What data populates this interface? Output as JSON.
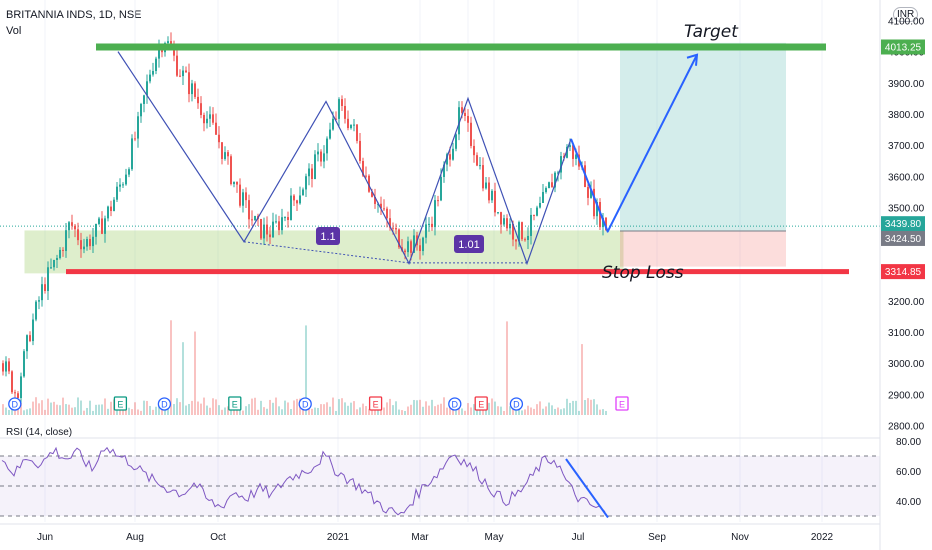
{
  "header": {
    "ticker": "BRITANNIA INDS, 1D, NSE",
    "volume_label": "Vol",
    "currency": "INR",
    "rsi_title": "RSI (14, close)"
  },
  "annotations": {
    "target": "Target",
    "stop_loss": "Stop Loss",
    "ratio_1": "1.1",
    "ratio_2": "1.01"
  },
  "colors": {
    "up": "#26a69a",
    "down": "#ef5350",
    "target_line": "#4caf50",
    "stop_line": "#f23645",
    "zone": "#8bc34a",
    "pattern_line": "#3f51b5",
    "arrow": "#2962ff",
    "rsi": "#7e57c2",
    "badge": "#5b34a6"
  },
  "chart_data": [
    {
      "type": "line",
      "subtype": "candlestick",
      "title": "BRITANNIA INDS, 1D, NSE",
      "ylim": [
        2760,
        4140
      ],
      "y_ticks": [
        "4100.00",
        "4000.00",
        "3900.00",
        "3800.00",
        "3700.00",
        "3600.00",
        "3500.00",
        "3400.00",
        "3300.00",
        "3200.00",
        "3100.00",
        "3000.00",
        "2900.00",
        "2800.00"
      ],
      "x_ticks": [
        "Jun",
        "Aug",
        "Oct",
        "2021",
        "Mar",
        "May",
        "Jul",
        "Sep",
        "Nov",
        "2022"
      ],
      "price_labels": [
        {
          "value": "4013.25",
          "color": "#4caf50"
        },
        {
          "value": "3439.80",
          "color": "#26a69a"
        },
        {
          "value": "3424.50",
          "color": "#787b86"
        },
        {
          "value": "3314.85",
          "color": "#f23645"
        }
      ],
      "levels": {
        "target": 4013.25,
        "last": 3439.8,
        "entry": 3424.5,
        "stop": 3314.85
      },
      "pattern_points": [
        [
          "Aug",
          4000
        ],
        [
          "Oct",
          3390
        ],
        [
          "2021",
          3840
        ],
        [
          "Mar",
          3320
        ],
        [
          "Apr",
          3850
        ],
        [
          "May",
          3320
        ],
        [
          "Jul",
          3720
        ],
        [
          "Jul",
          3420
        ]
      ],
      "projected_target": [
        "Sep",
        3990
      ],
      "series": [
        {
          "values": [
            3000,
            2900,
            3100,
            3250,
            3330,
            3450,
            3380,
            3420,
            3500,
            3600,
            3750,
            3950,
            4050,
            3950,
            3880,
            3800,
            3720,
            3600,
            3500,
            3430,
            3420,
            3480,
            3550,
            3620,
            3700,
            3820,
            3760,
            3600,
            3500,
            3420,
            3380,
            3380,
            3480,
            3650,
            3800,
            3700,
            3550,
            3480,
            3420,
            3420,
            3500,
            3600,
            3700,
            3630,
            3500,
            3430
          ]
        }
      ],
      "events": [
        {
          "type": "D",
          "x": 0.01
        },
        {
          "type": "E",
          "x": 0.13
        },
        {
          "type": "D",
          "x": 0.18
        },
        {
          "type": "E",
          "x": 0.26
        },
        {
          "type": "D",
          "x": 0.34
        },
        {
          "type": "E",
          "x": 0.42
        },
        {
          "type": "D",
          "x": 0.51
        },
        {
          "type": "E",
          "x": 0.54
        },
        {
          "type": "D",
          "x": 0.58
        },
        {
          "type": "E",
          "x": 0.7
        }
      ]
    },
    {
      "type": "line",
      "title": "RSI (14, close)",
      "ylim": [
        26,
        82
      ],
      "y_ticks": [
        "80.00",
        "60.00",
        "40.00"
      ],
      "bands": {
        "upper": 70,
        "middle": 50,
        "lower": 30
      },
      "series": [
        {
          "name": "RSI (14, close)",
          "values": [
            68,
            58,
            70,
            64,
            74,
            68,
            72,
            60,
            78,
            70,
            66,
            58,
            52,
            48,
            45,
            52,
            40,
            36,
            46,
            42,
            48,
            44,
            54,
            58,
            62,
            70,
            60,
            54,
            48,
            40,
            34,
            30,
            42,
            52,
            60,
            72,
            66,
            58,
            48,
            40,
            44,
            54,
            66,
            68,
            50,
            40,
            36,
            32
          ]
        }
      ]
    }
  ]
}
